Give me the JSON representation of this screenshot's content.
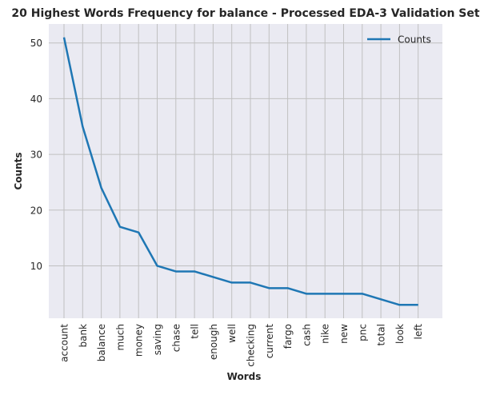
{
  "chart_data": {
    "type": "line",
    "title": "20 Highest Words Frequency for balance - Processed EDA-3 Validation Set",
    "xlabel": "Words",
    "ylabel": "Counts",
    "categories": [
      "account",
      "bank",
      "balance",
      "much",
      "money",
      "saving",
      "chase",
      "tell",
      "enough",
      "well",
      "checking",
      "current",
      "fargo",
      "cash",
      "nike",
      "new",
      "pnc",
      "total",
      "look",
      "left"
    ],
    "series": [
      {
        "name": "Counts",
        "values": [
          51,
          35,
          24,
          17,
          16,
          10,
          9,
          9,
          8,
          7,
          7,
          6,
          6,
          5,
          5,
          5,
          5,
          4,
          3,
          3
        ]
      }
    ],
    "ylim": [
      0.6,
      53.4
    ],
    "yticks": [
      10,
      20,
      30,
      40,
      50
    ],
    "grid": true,
    "legend_position": "top-right",
    "colors": {
      "line": "#1f77b4",
      "plot_background": "#eaeaf2",
      "grid": "#c0c0c0",
      "text": "#262626"
    }
  }
}
